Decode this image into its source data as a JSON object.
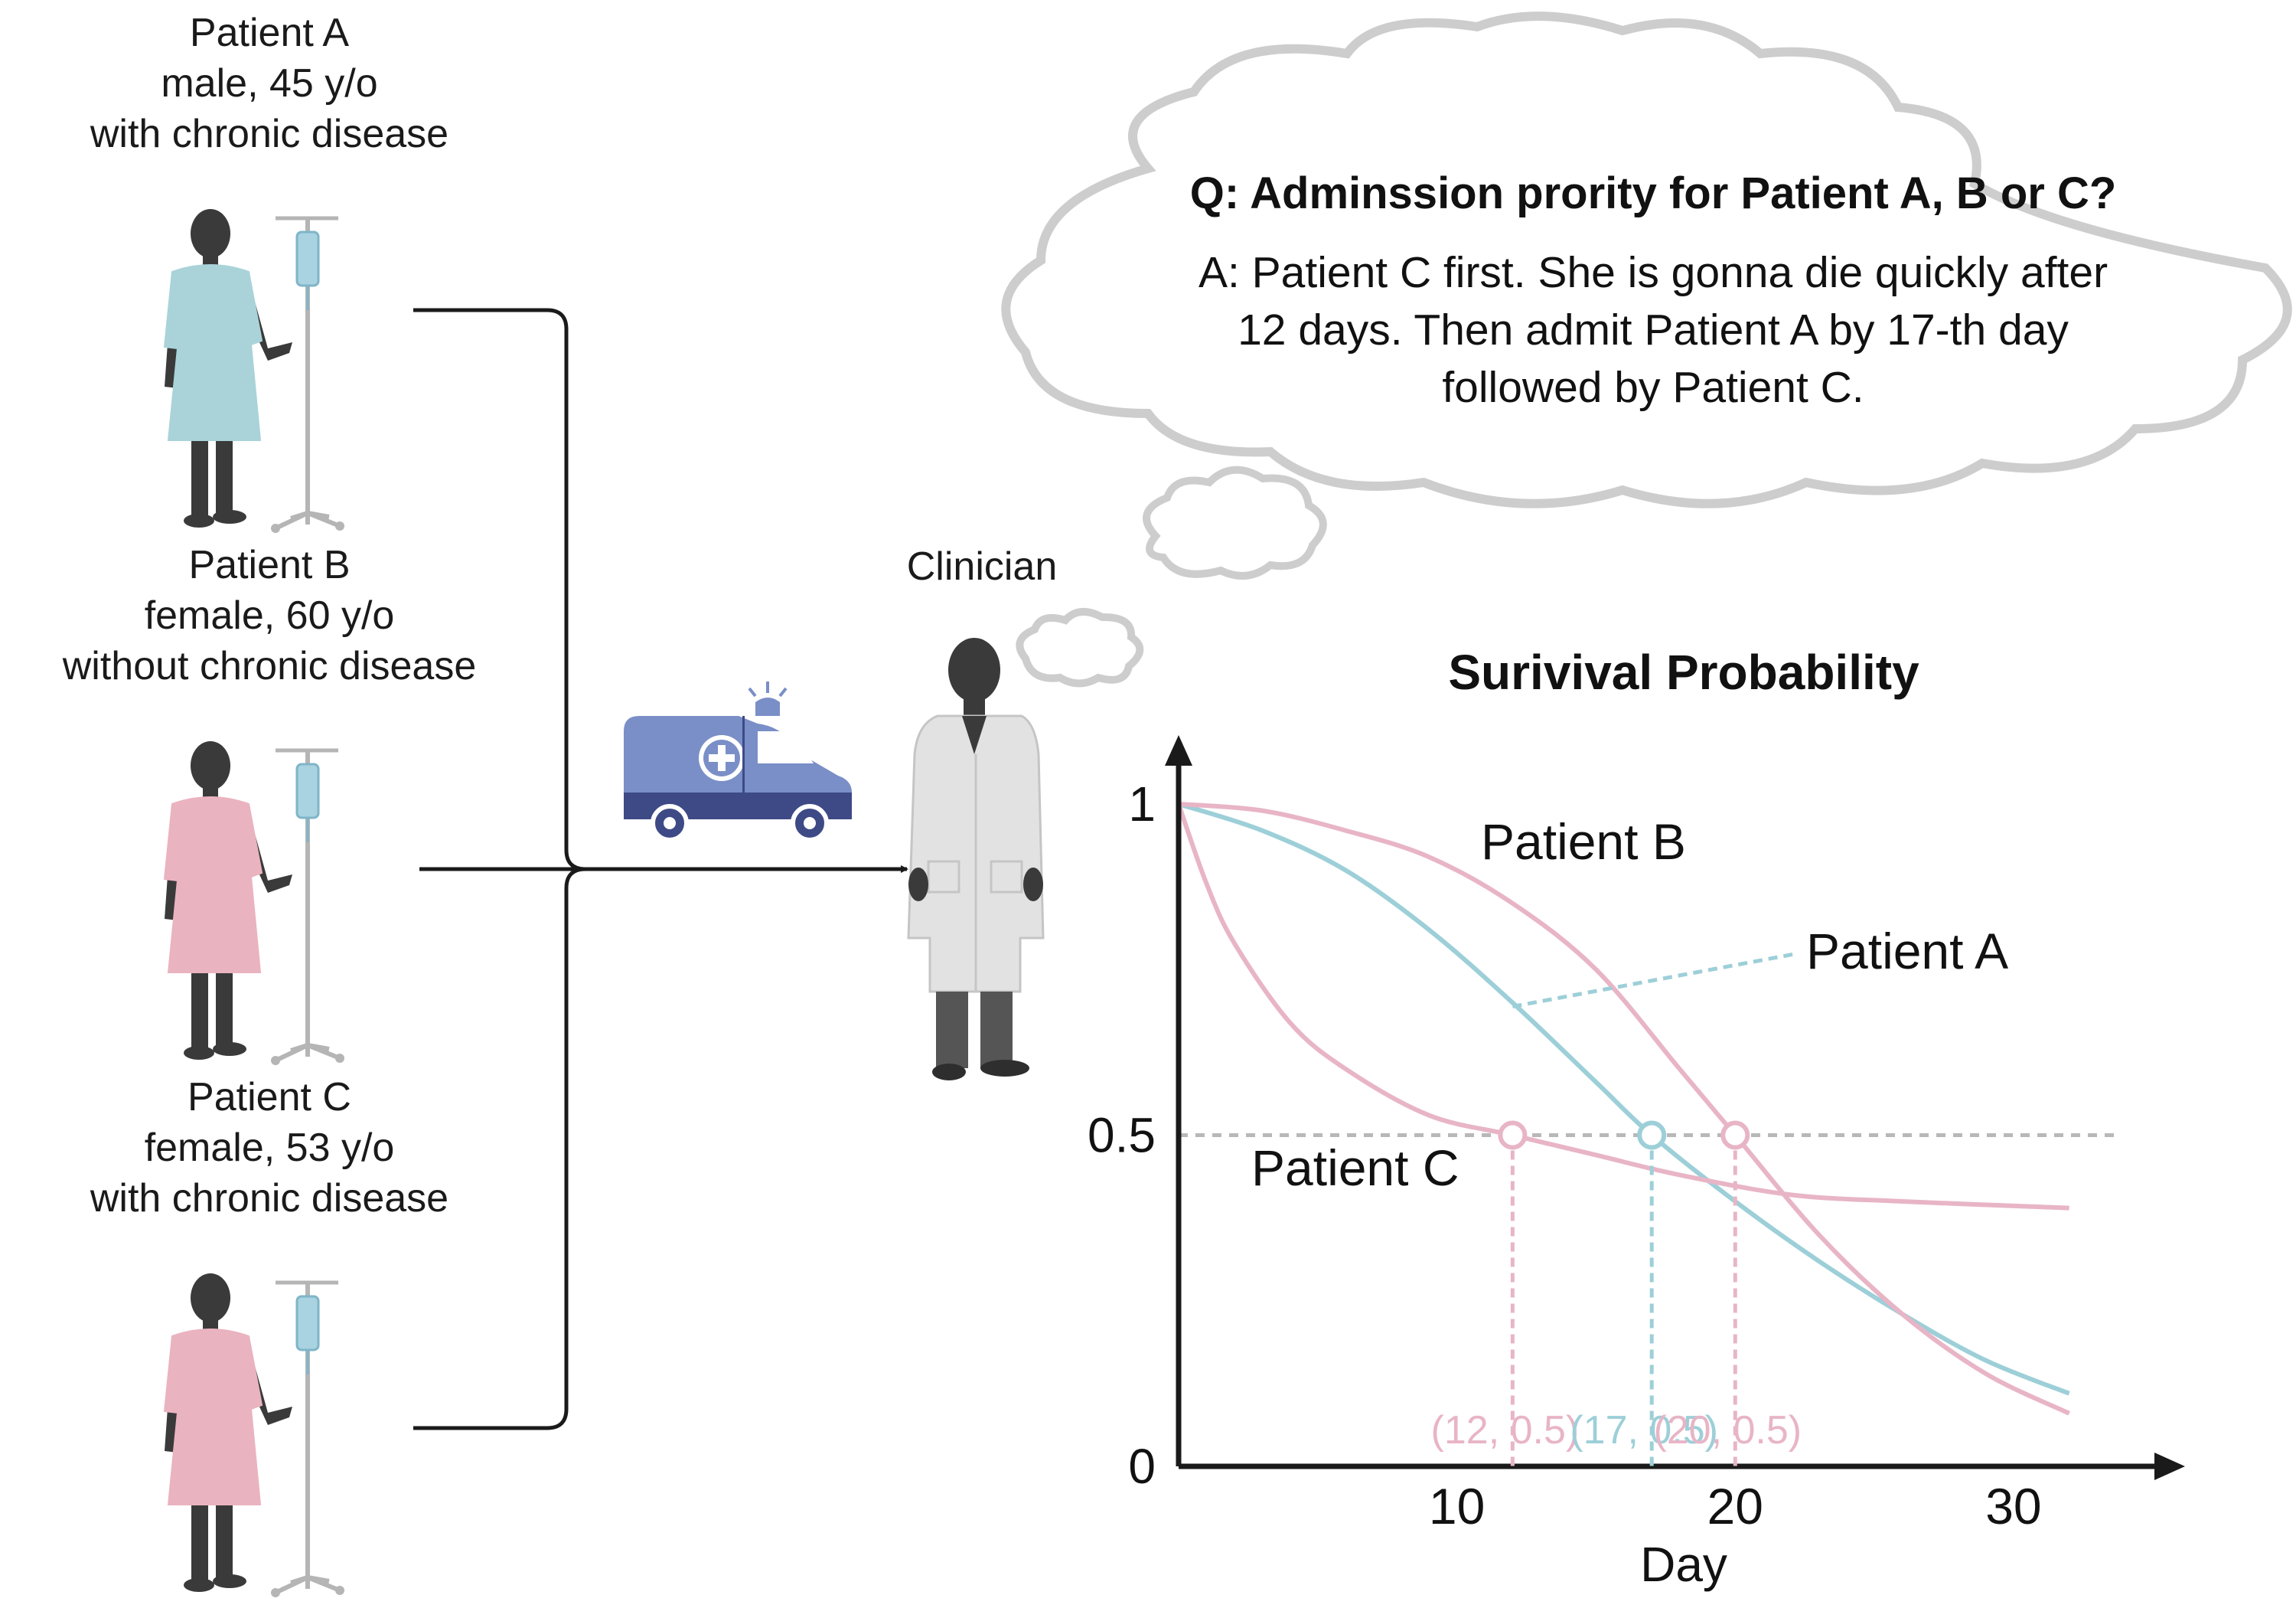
{
  "patients": [
    {
      "name": "Patient A",
      "demo": "male, 45 y/o",
      "condition": "with chronic disease",
      "gown_color": "#a9d3d9"
    },
    {
      "name": "Patient B",
      "demo": "female, 60 y/o",
      "condition": "without chronic disease",
      "gown_color": "#eab3c0"
    },
    {
      "name": "Patient C",
      "demo": "female, 53 y/o",
      "condition": "with chronic disease",
      "gown_color": "#eab3c0"
    }
  ],
  "clinician": {
    "label": "Clinician"
  },
  "thought": {
    "question": "Q: Adminssion prority for Patient A, B or C?",
    "answer_lines": [
      "A: Patient C first. She is gonna die quickly after",
      "12 days. Then admit Patient A by 17-th day",
      "followed by Patient C."
    ]
  },
  "chart_data": {
    "type": "line",
    "title": "Surivival Probability",
    "xlabel": "Day",
    "ylabel": "",
    "xlim": [
      0,
      33
    ],
    "ylim": [
      0,
      1
    ],
    "x_ticks": [
      10,
      20,
      30
    ],
    "y_ticks": [
      {
        "value": 0,
        "label": "0"
      },
      {
        "value": 0.5,
        "label": "0.5"
      },
      {
        "value": 1,
        "label": "1"
      }
    ],
    "reference_line": {
      "y": 0.5,
      "color": "#b8b8b8"
    },
    "series": [
      {
        "name": "Patient A",
        "color": "#9dcfd8",
        "x": [
          0,
          3,
          6,
          9,
          12,
          15,
          17,
          20,
          23,
          26,
          29,
          32
        ],
        "y": [
          1.0,
          0.96,
          0.9,
          0.81,
          0.7,
          0.58,
          0.5,
          0.4,
          0.31,
          0.23,
          0.16,
          0.11
        ]
      },
      {
        "name": "Patient B",
        "color": "#e8b5c6",
        "x": [
          0,
          3,
          6,
          9,
          12,
          15,
          18,
          20,
          23,
          26,
          29,
          32
        ],
        "y": [
          1.0,
          0.99,
          0.96,
          0.92,
          0.85,
          0.75,
          0.6,
          0.5,
          0.35,
          0.23,
          0.14,
          0.08
        ]
      },
      {
        "name": "Patient C",
        "color": "#e8b5c6",
        "x": [
          0,
          1,
          2,
          4,
          6,
          9,
          12,
          15,
          18,
          22,
          26,
          32
        ],
        "y": [
          1.0,
          0.88,
          0.79,
          0.67,
          0.6,
          0.53,
          0.5,
          0.47,
          0.44,
          0.41,
          0.4,
          0.39
        ]
      }
    ],
    "markers": [
      {
        "x": 12,
        "y": 0.5,
        "label": "(12, 0.5)",
        "color": "#e8b5c6"
      },
      {
        "x": 17,
        "y": 0.5,
        "label": "(17, 0.5)",
        "color": "#9dcfd8"
      },
      {
        "x": 20,
        "y": 0.5,
        "label": "(20, 0.5)",
        "color": "#e8b5c6"
      }
    ]
  }
}
